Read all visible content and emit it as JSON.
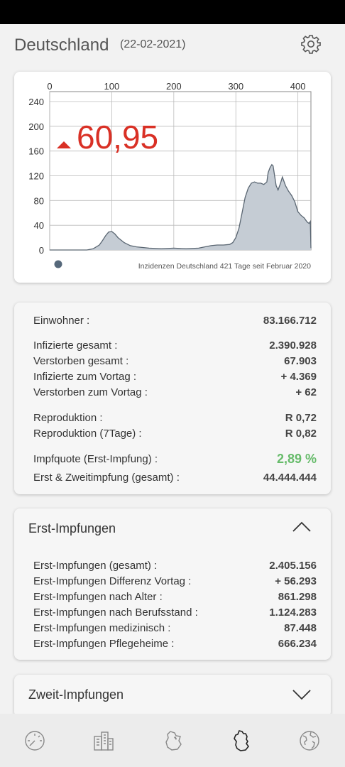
{
  "header": {
    "title": "Deutschland",
    "date": "(22-02-2021)",
    "settings_icon": "gear-icon"
  },
  "chart": {
    "current_value": "60,95",
    "trend_icon": "triangle-up-icon",
    "caption": "Inzidenzen Deutschland 421 Tage seit Februar 2020",
    "fill_color": "#c5ccd4",
    "line_color": "#5a6672",
    "value_color": "#d93025"
  },
  "chart_data": {
    "type": "area",
    "x_ticks": [
      "0",
      "100",
      "200",
      "300",
      "400"
    ],
    "y_ticks": [
      "0",
      "40",
      "80",
      "120",
      "160",
      "200",
      "240"
    ],
    "xlim": [
      0,
      421
    ],
    "ylim": [
      0,
      240
    ],
    "x": [
      0,
      20,
      40,
      60,
      70,
      80,
      85,
      90,
      95,
      100,
      105,
      110,
      120,
      130,
      140,
      160,
      180,
      200,
      220,
      240,
      250,
      260,
      270,
      280,
      290,
      295,
      300,
      305,
      310,
      315,
      320,
      325,
      330,
      335,
      340,
      345,
      350,
      352,
      355,
      358,
      360,
      365,
      368,
      372,
      375,
      380,
      385,
      390,
      395,
      400,
      405,
      410,
      415,
      418,
      420,
      421
    ],
    "y": [
      0,
      0,
      0,
      0,
      2,
      8,
      15,
      23,
      29,
      30,
      26,
      20,
      12,
      7,
      5,
      3,
      2,
      3,
      2,
      3,
      5,
      7,
      8,
      8,
      9,
      12,
      20,
      35,
      60,
      85,
      100,
      108,
      110,
      108,
      108,
      106,
      110,
      125,
      133,
      138,
      136,
      104,
      97,
      108,
      118,
      104,
      95,
      88,
      78,
      62,
      56,
      52,
      45,
      43,
      46,
      3
    ]
  },
  "stats": {
    "rows": [
      {
        "label": "Einwohner :",
        "value": "83.166.712"
      },
      {
        "label": "Infizierte gesamt :",
        "value": "2.390.928"
      },
      {
        "label": "Verstorben gesamt :",
        "value": "67.903"
      },
      {
        "label": "Infizierte zum Vortag :",
        "value": "+ 4.369"
      },
      {
        "label": "Verstorben zum Vortag :",
        "value": "+ 62"
      },
      {
        "label": "Reproduktion :",
        "value": "R  0,72"
      },
      {
        "label": "Reproduktion (7Tage) :",
        "value": "R  0,82"
      },
      {
        "label": "Impfquote (Erst-Impfung) :",
        "value": "2,89 %"
      },
      {
        "label": "Erst & Zweitimpfung (gesamt) :",
        "value": "44.444.444"
      }
    ],
    "highlight_color": "#66bb6a"
  },
  "first_vaccinations": {
    "title": "Erst-Impfungen",
    "expanded_icon": "chevron-up-icon",
    "rows": [
      {
        "label": "Erst-Impfungen (gesamt) :",
        "value": "2.405.156"
      },
      {
        "label": "Erst-Impfungen Differenz Vortag  :",
        "value": "+ 56.293"
      },
      {
        "label": "Erst-Impfungen nach Alter :",
        "value": "861.298"
      },
      {
        "label": "Erst-Impfungen nach Berufsstand :",
        "value": "1.124.283"
      },
      {
        "label": "Erst-Impfungen medizinisch :",
        "value": "87.448"
      },
      {
        "label": "Erst-Impfungen Pflegeheime :",
        "value": "666.234"
      }
    ]
  },
  "second_vaccinations": {
    "title": "Zweit-Impfungen",
    "collapsed_icon": "chevron-down-icon"
  },
  "bottom_nav": {
    "items": [
      "speedometer-icon",
      "buildings-icon",
      "state-map-icon",
      "germany-map-icon",
      "globe-icon"
    ],
    "active_index": 3
  }
}
